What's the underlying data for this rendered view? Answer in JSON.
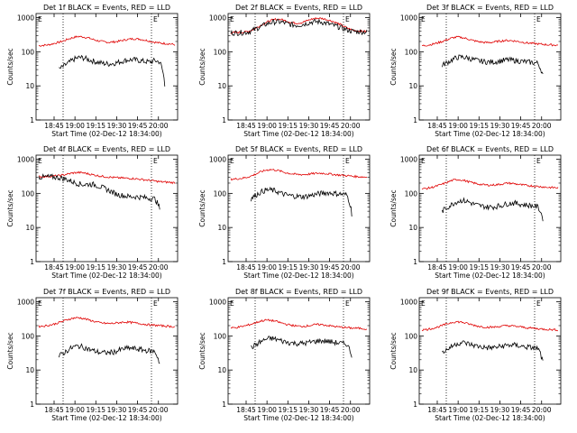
{
  "chart_data": [
    {
      "id": "det1",
      "title": "Det 1f BLACK = Events, RED = LLD",
      "type": "line",
      "ylabel": "Counts/sec",
      "xlabel": "Start Time (02-Dec-12 18:34:00)",
      "yscale": "log",
      "ylim": [
        1,
        1000
      ],
      "yticks": [
        "1",
        "10",
        "100",
        "1000"
      ],
      "xticks": [
        "18:45",
        "19:00",
        "19:15",
        "19:30",
        "19:45",
        "20:00"
      ],
      "markers": {
        "left": "E",
        "right": "E"
      },
      "series": [
        {
          "color": "#e00000",
          "values": [
            150,
            155,
            160,
            175,
            190,
            210,
            240,
            265,
            280,
            270,
            250,
            225,
            205,
            195,
            190,
            195,
            205,
            220,
            235,
            240,
            235,
            220,
            205,
            190,
            180,
            175,
            170,
            160
          ]
        },
        {
          "color": "#000000",
          "values": [
            null,
            null,
            null,
            null,
            30,
            38,
            48,
            60,
            68,
            65,
            58,
            52,
            48,
            45,
            44,
            46,
            50,
            55,
            58,
            58,
            55,
            52,
            50,
            55,
            50,
            10,
            null,
            null
          ]
        }
      ]
    },
    {
      "id": "det2",
      "title": "Det 2f BLACK = Events, RED = LLD",
      "type": "line",
      "ylabel": "Counts/sec",
      "xlabel": "Start Time (02-Dec-12 18:34:00)",
      "yscale": "log",
      "ylim": [
        1,
        1000
      ],
      "yticks": [
        "1",
        "10",
        "100",
        "1000"
      ],
      "xticks": [
        "18:45",
        "19:00",
        "19:15",
        "19:30",
        "19:45",
        "20:00"
      ],
      "markers": {
        "left": "E",
        "right": "E"
      },
      "series": [
        {
          "color": "#e00000",
          "values": [
            360,
            365,
            370,
            380,
            420,
            500,
            600,
            720,
            830,
            900,
            880,
            800,
            720,
            690,
            710,
            800,
            900,
            960,
            950,
            880,
            800,
            700,
            600,
            500,
            440,
            410,
            400,
            390
          ]
        },
        {
          "color": "#000000",
          "values": [
            355,
            360,
            362,
            370,
            400,
            470,
            550,
            640,
            720,
            760,
            740,
            680,
            620,
            600,
            620,
            680,
            740,
            760,
            740,
            680,
            610,
            560,
            500,
            440,
            400,
            390,
            385,
            380
          ]
        }
      ]
    },
    {
      "id": "det3",
      "title": "Det 3f BLACK = Events, RED = LLD",
      "type": "line",
      "ylabel": "Counts/sec",
      "xlabel": "Start Time (02-Dec-12 18:34:00)",
      "yscale": "log",
      "ylim": [
        1,
        1000
      ],
      "yticks": [
        "1",
        "10",
        "100",
        "1000"
      ],
      "xticks": [
        "18:45",
        "19:00",
        "19:15",
        "19:30",
        "19:45",
        "20:00"
      ],
      "markers": {
        "left": "E",
        "right": "E"
      },
      "series": [
        {
          "color": "#e00000",
          "values": [
            150,
            155,
            165,
            180,
            200,
            225,
            255,
            270,
            260,
            240,
            215,
            200,
            190,
            185,
            190,
            200,
            210,
            215,
            210,
            200,
            190,
            180,
            175,
            170,
            165,
            160,
            158,
            155
          ]
        },
        {
          "color": "#000000",
          "values": [
            null,
            null,
            null,
            null,
            40,
            48,
            58,
            68,
            70,
            66,
            60,
            55,
            52,
            50,
            50,
            52,
            55,
            58,
            56,
            54,
            52,
            50,
            48,
            46,
            20,
            null,
            null,
            null
          ]
        }
      ]
    },
    {
      "id": "det4",
      "title": "Det 4f BLACK = Events, RED = LLD",
      "type": "line",
      "ylabel": "Counts/sec",
      "xlabel": "Start Time (02-Dec-12 18:34:00)",
      "yscale": "log",
      "ylim": [
        1,
        1000
      ],
      "yticks": [
        "1",
        "10",
        "100",
        "1000"
      ],
      "xticks": [
        "18:45",
        "19:00",
        "19:15",
        "19:30",
        "19:45",
        "20:00"
      ],
      "markers": {
        "left": "E",
        "right": "E"
      },
      "series": [
        {
          "color": "#e00000",
          "values": [
            310,
            310,
            315,
            320,
            330,
            350,
            375,
            400,
            410,
            395,
            370,
            345,
            325,
            310,
            300,
            290,
            285,
            280,
            275,
            270,
            260,
            250,
            240,
            230,
            220,
            215,
            210,
            205
          ]
        },
        {
          "color": "#000000",
          "values": [
            300,
            300,
            305,
            300,
            290,
            270,
            240,
            210,
            190,
            180,
            185,
            180,
            160,
            140,
            120,
            100,
            90,
            85,
            80,
            80,
            78,
            75,
            72,
            70,
            35,
            null,
            null,
            null
          ]
        }
      ]
    },
    {
      "id": "det5",
      "title": "Det 5f BLACK = Events, RED = LLD",
      "type": "line",
      "ylabel": "Counts/sec",
      "xlabel": "Start Time (02-Dec-12 18:34:00)",
      "yscale": "log",
      "ylim": [
        1,
        1000
      ],
      "yticks": [
        "1",
        "10",
        "100",
        "1000"
      ],
      "xticks": [
        "18:45",
        "19:00",
        "19:15",
        "19:30",
        "19:45",
        "20:00"
      ],
      "markers": {
        "left": "E",
        "right": "E"
      },
      "series": [
        {
          "color": "#e00000",
          "values": [
            260,
            265,
            275,
            290,
            320,
            370,
            430,
            480,
            500,
            480,
            440,
            400,
            375,
            360,
            355,
            360,
            375,
            385,
            390,
            380,
            365,
            350,
            340,
            330,
            320,
            310,
            305,
            300
          ]
        },
        {
          "color": "#000000",
          "values": [
            null,
            null,
            null,
            null,
            70,
            90,
            110,
            125,
            125,
            115,
            100,
            90,
            85,
            82,
            80,
            82,
            88,
            95,
            100,
            105,
            102,
            98,
            95,
            90,
            25,
            null,
            null,
            null
          ]
        }
      ]
    },
    {
      "id": "det6",
      "title": "Det 6f BLACK = Events, RED = LLD",
      "type": "line",
      "ylabel": "Counts/sec",
      "xlabel": "Start Time (02-Dec-12 18:34:00)",
      "yscale": "log",
      "ylim": [
        1,
        1000
      ],
      "yticks": [
        "1",
        "10",
        "100",
        "1000"
      ],
      "xticks": [
        "18:45",
        "19:00",
        "19:15",
        "19:30",
        "19:45",
        "20:00"
      ],
      "markers": {
        "left": "E",
        "right": "E"
      },
      "series": [
        {
          "color": "#e00000",
          "values": [
            135,
            140,
            150,
            165,
            185,
            210,
            240,
            255,
            245,
            225,
            205,
            190,
            180,
            175,
            175,
            180,
            190,
            200,
            195,
            185,
            175,
            170,
            165,
            160,
            155,
            150,
            148,
            145
          ]
        },
        {
          "color": "#000000",
          "values": [
            null,
            null,
            null,
            null,
            30,
            38,
            48,
            58,
            62,
            58,
            50,
            45,
            42,
            40,
            40,
            42,
            45,
            50,
            52,
            50,
            47,
            45,
            43,
            40,
            18,
            null,
            null,
            null
          ]
        }
      ]
    },
    {
      "id": "det7",
      "title": "Det 7f BLACK = Events, RED = LLD",
      "type": "line",
      "ylabel": "Counts/sec",
      "xlabel": "Start Time (02-Dec-12 18:34:00)",
      "yscale": "log",
      "ylim": [
        1,
        1000
      ],
      "yticks": [
        "1",
        "10",
        "100",
        "1000"
      ],
      "xticks": [
        "18:45",
        "19:00",
        "19:15",
        "19:30",
        "19:45",
        "20:00"
      ],
      "markers": {
        "left": "E",
        "right": "E"
      },
      "series": [
        {
          "color": "#e00000",
          "values": [
            190,
            195,
            205,
            220,
            245,
            275,
            310,
            335,
            340,
            320,
            290,
            265,
            245,
            235,
            230,
            235,
            245,
            255,
            250,
            240,
            230,
            220,
            210,
            205,
            200,
            195,
            190,
            185
          ]
        },
        {
          "color": "#000000",
          "values": [
            null,
            null,
            null,
            null,
            25,
            32,
            40,
            48,
            50,
            46,
            40,
            36,
            33,
            32,
            32,
            34,
            38,
            42,
            44,
            42,
            40,
            38,
            36,
            35,
            15,
            null,
            null,
            null
          ]
        }
      ]
    },
    {
      "id": "det8",
      "title": "Det 8f BLACK = Events, RED = LLD",
      "type": "line",
      "ylabel": "Counts/sec",
      "xlabel": "Start Time (02-Dec-12 18:34:00)",
      "yscale": "log",
      "ylim": [
        1,
        1000
      ],
      "yticks": [
        "1",
        "10",
        "100",
        "1000"
      ],
      "xticks": [
        "18:45",
        "19:00",
        "19:15",
        "19:30",
        "19:45",
        "20:00"
      ],
      "markers": {
        "left": "E",
        "right": "E"
      },
      "series": [
        {
          "color": "#e00000",
          "values": [
            170,
            175,
            185,
            200,
            220,
            245,
            275,
            290,
            285,
            265,
            240,
            220,
            205,
            195,
            190,
            195,
            205,
            215,
            215,
            205,
            195,
            185,
            180,
            175,
            170,
            168,
            165,
            160
          ]
        },
        {
          "color": "#000000",
          "values": [
            null,
            null,
            null,
            null,
            45,
            55,
            68,
            80,
            85,
            80,
            72,
            66,
            62,
            60,
            60,
            62,
            66,
            70,
            72,
            70,
            66,
            63,
            60,
            58,
            25,
            null,
            null,
            null
          ]
        }
      ]
    },
    {
      "id": "det9",
      "title": "Det 9f BLACK = Events, RED = LLD",
      "type": "line",
      "ylabel": "Counts/sec",
      "xlabel": "Start Time (02-Dec-12 18:34:00)",
      "yscale": "log",
      "ylim": [
        1,
        1000
      ],
      "yticks": [
        "1",
        "10",
        "100",
        "1000"
      ],
      "xticks": [
        "18:45",
        "19:00",
        "19:15",
        "19:30",
        "19:45",
        "20:00"
      ],
      "markers": {
        "left": "E",
        "right": "E"
      },
      "series": [
        {
          "color": "#e00000",
          "values": [
            150,
            155,
            165,
            180,
            200,
            225,
            250,
            260,
            250,
            230,
            210,
            195,
            185,
            180,
            180,
            185,
            195,
            200,
            195,
            188,
            180,
            172,
            168,
            162,
            158,
            155,
            152,
            150
          ]
        },
        {
          "color": "#000000",
          "values": [
            null,
            null,
            null,
            null,
            32,
            40,
            50,
            60,
            64,
            60,
            54,
            50,
            47,
            45,
            45,
            47,
            50,
            53,
            54,
            52,
            49,
            47,
            45,
            43,
            16,
            null,
            null,
            null
          ]
        }
      ]
    }
  ]
}
